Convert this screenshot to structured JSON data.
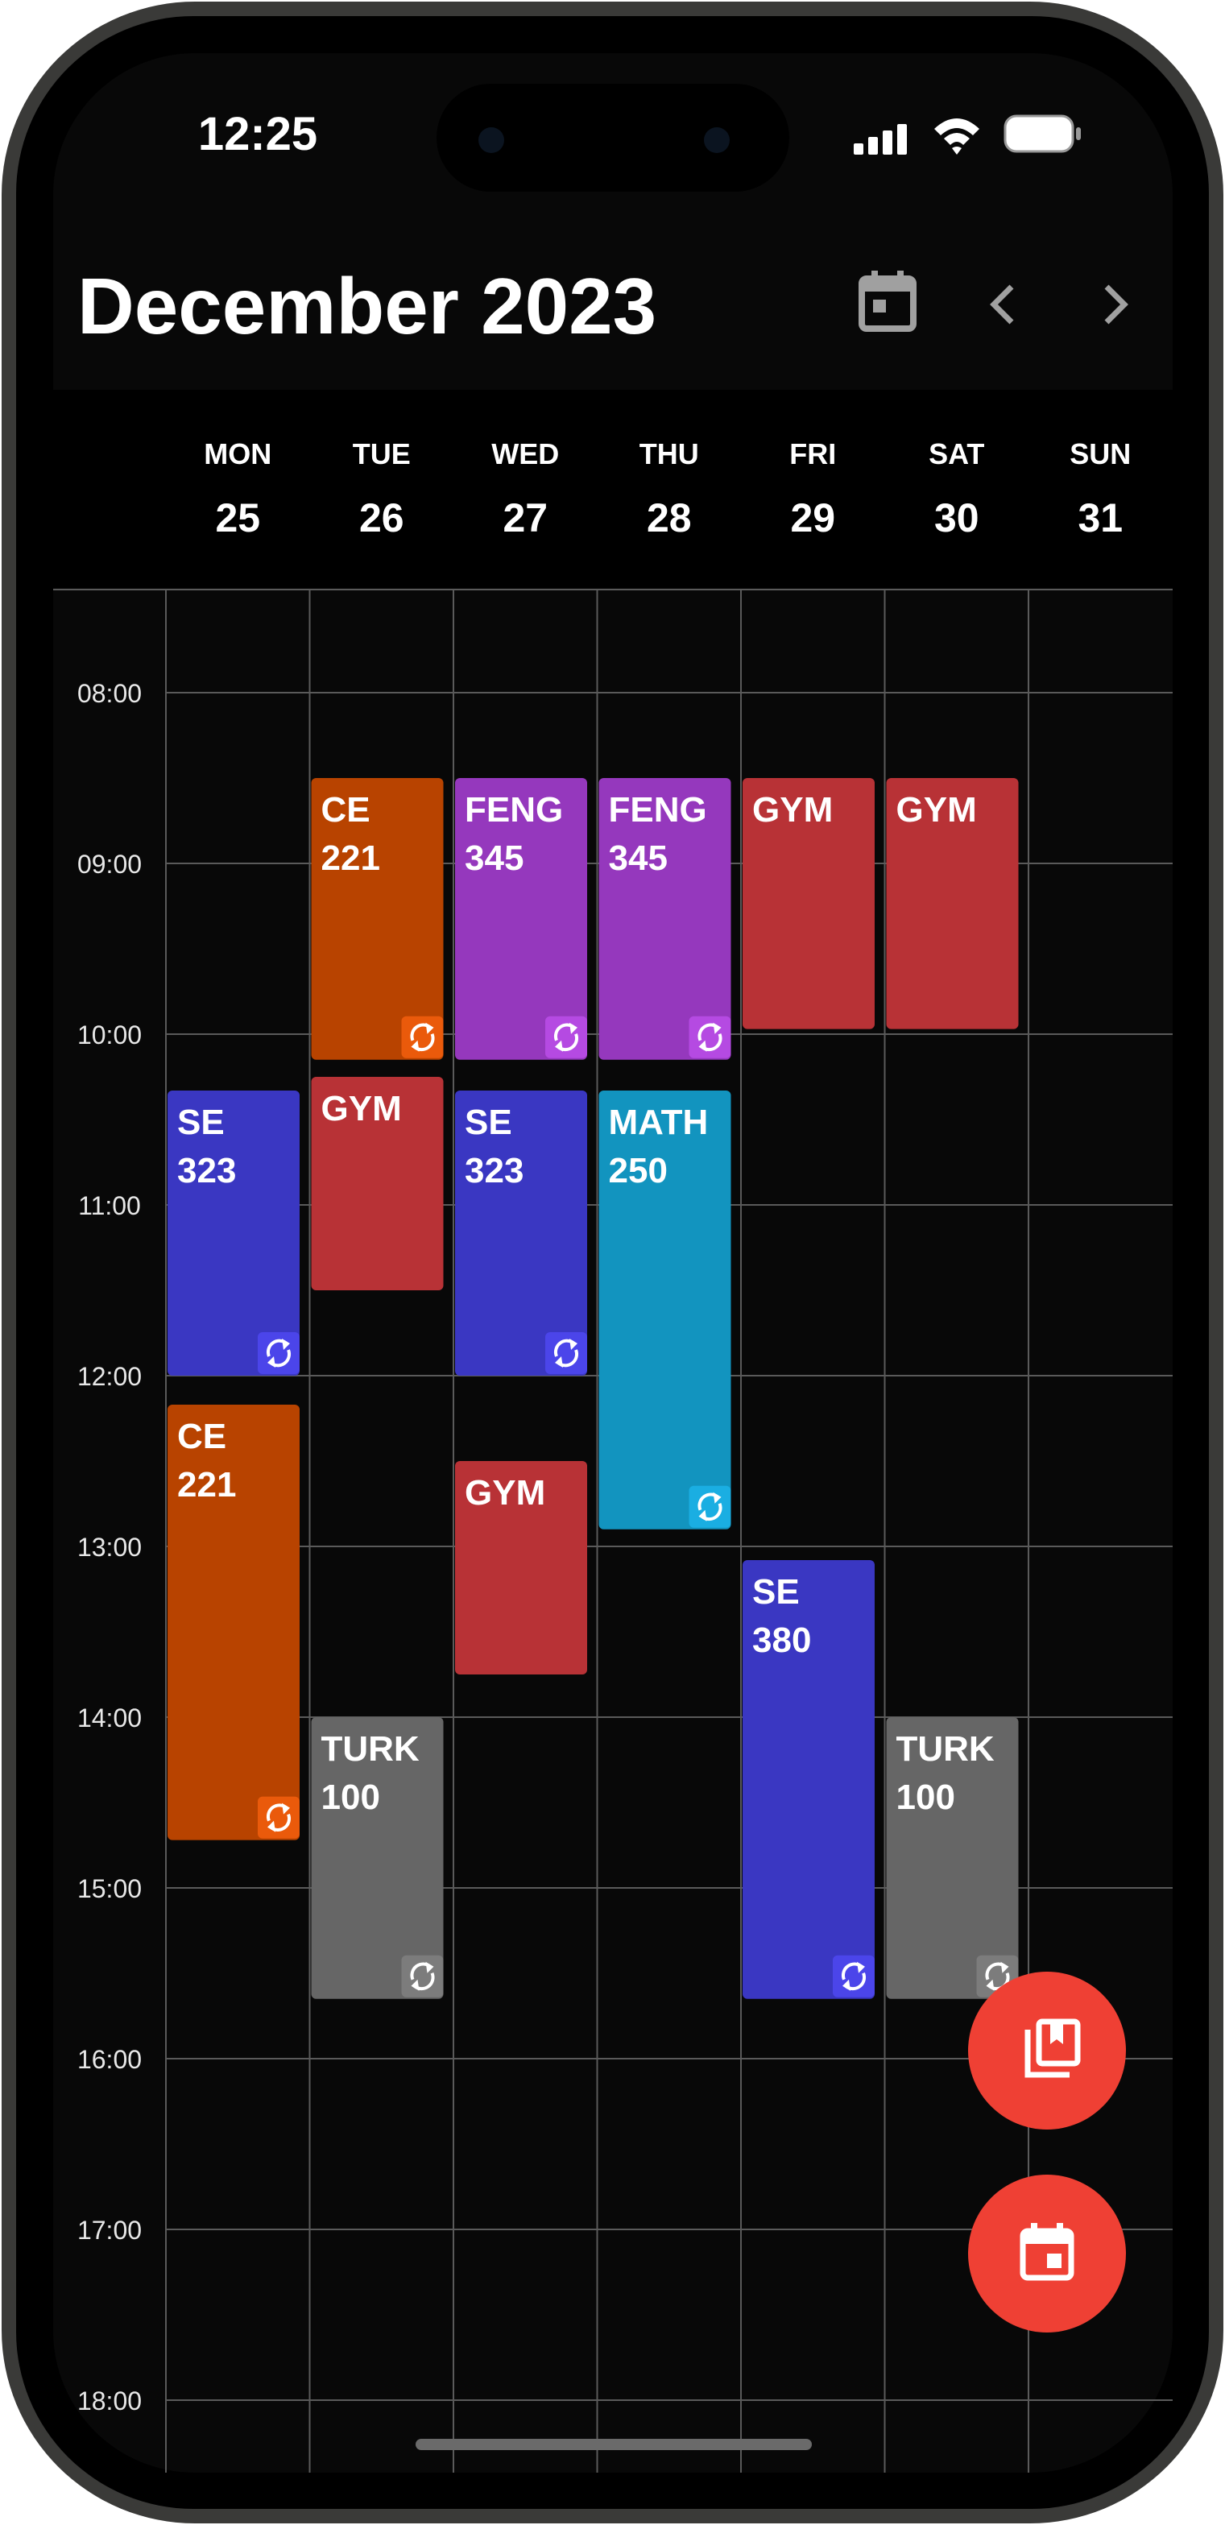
{
  "status_bar": {
    "time": "12:25"
  },
  "header": {
    "title": "December 2023"
  },
  "time_labels": [
    "08:00",
    "09:00",
    "10:00",
    "11:00",
    "12:00",
    "13:00",
    "14:00",
    "15:00",
    "16:00",
    "17:00",
    "18:00"
  ],
  "days": [
    {
      "weekday": "MON",
      "date": "25",
      "events": [
        {
          "title": "SE",
          "code": "323",
          "start": 10.33,
          "end": 12.0,
          "color": "#3a37c2",
          "badge_color": "#4b45ea"
        },
        {
          "title": "CE",
          "code": "221",
          "start": 12.17,
          "end": 14.72,
          "color": "#b84300",
          "badge_color": "#ea5a0b"
        }
      ]
    },
    {
      "weekday": "TUE",
      "date": "26",
      "events": [
        {
          "title": "CE",
          "code": "221",
          "start": 8.5,
          "end": 10.15,
          "color": "#b84300",
          "badge_color": "#ea5a0b"
        },
        {
          "title": "GYM",
          "start": 10.25,
          "end": 11.5,
          "color": "#b83236"
        },
        {
          "title": "TURK",
          "code": "100",
          "start": 14.0,
          "end": 15.65,
          "color": "#666666",
          "badge_color": "#7c7c7c"
        }
      ]
    },
    {
      "weekday": "WED",
      "date": "27",
      "events": [
        {
          "title": "FENG",
          "code": "345",
          "start": 8.5,
          "end": 10.15,
          "color": "#9538bd",
          "badge_color": "#b54ae2"
        },
        {
          "title": "SE",
          "code": "323",
          "start": 10.33,
          "end": 12.0,
          "color": "#3a37c2",
          "badge_color": "#4b45ea"
        },
        {
          "title": "GYM",
          "start": 12.5,
          "end": 13.75,
          "color": "#b83236"
        }
      ]
    },
    {
      "weekday": "THU",
      "date": "28",
      "events": [
        {
          "title": "FENG",
          "code": "345",
          "start": 8.5,
          "end": 10.15,
          "color": "#9538bd",
          "badge_color": "#b54ae2"
        },
        {
          "title": "MATH",
          "code": "250",
          "start": 10.33,
          "end": 12.9,
          "color": "#1294bf",
          "badge_color": "#1aaee2"
        }
      ]
    },
    {
      "weekday": "FRI",
      "date": "29",
      "events": [
        {
          "title": "GYM",
          "start": 8.5,
          "end": 9.97,
          "color": "#b83236"
        },
        {
          "title": "SE",
          "code": "380",
          "start": 13.08,
          "end": 15.65,
          "color": "#3a37c2",
          "badge_color": "#4b45ea"
        }
      ]
    },
    {
      "weekday": "SAT",
      "date": "30",
      "events": [
        {
          "title": "GYM",
          "start": 8.5,
          "end": 9.97,
          "color": "#b83236"
        },
        {
          "title": "TURK",
          "code": "100",
          "start": 14.0,
          "end": 15.65,
          "color": "#666666",
          "badge_color": "#7c7c7c"
        }
      ]
    },
    {
      "weekday": "SUN",
      "date": "31",
      "events": []
    }
  ]
}
